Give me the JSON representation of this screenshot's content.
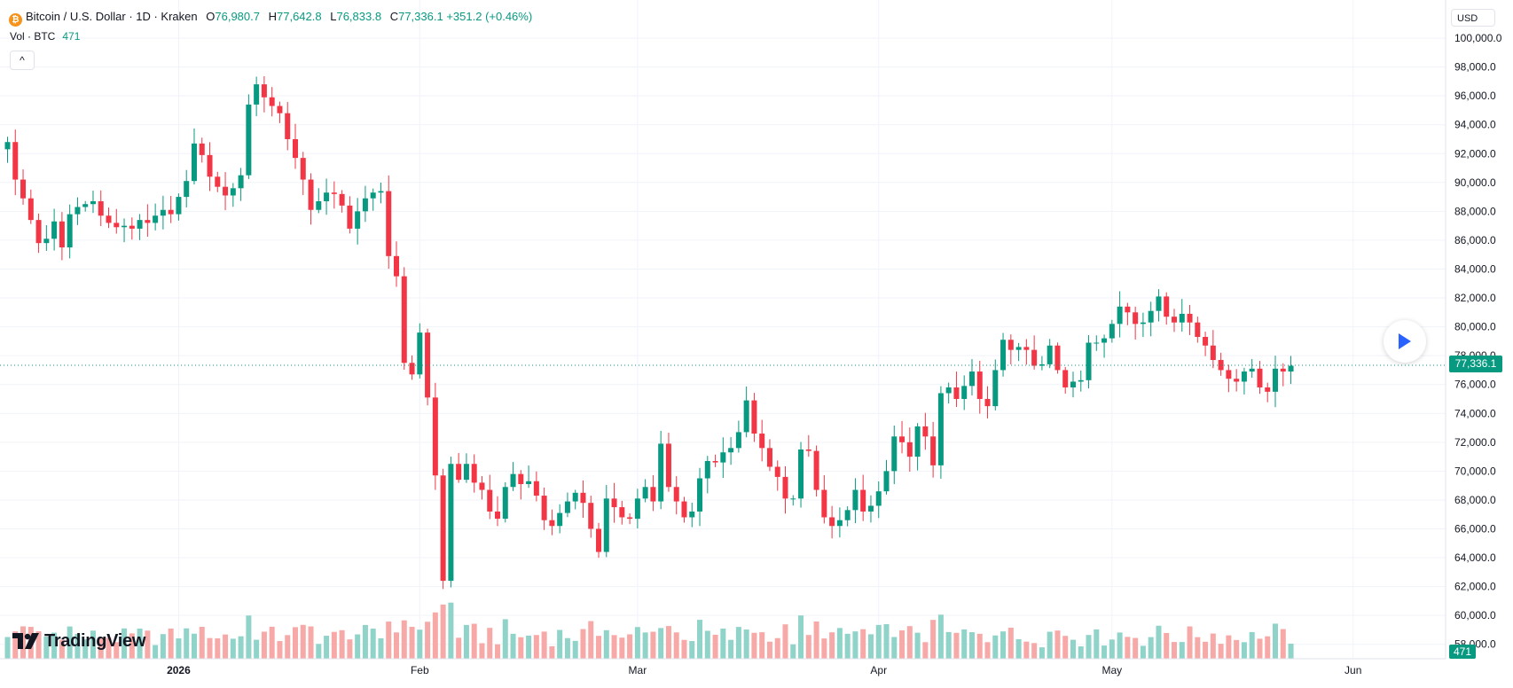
{
  "legend": {
    "coin_letter": "₿",
    "title": "Bitcoin / U.S. Dollar · 1D · Kraken",
    "open_label": "O",
    "open": "76,980.7",
    "high_label": "H",
    "high": "77,642.8",
    "low_label": "L",
    "low": "76,833.8",
    "close_label": "C",
    "close": "77,336.1",
    "change": "+351.2 (+0.46%)"
  },
  "volume_legend": {
    "label": "Vol · BTC",
    "value": "471"
  },
  "collapse_button": "^",
  "currency": "USD",
  "current_price_tag": "77,336.1",
  "current_volume_tag": "471",
  "logo_text": "TradingView",
  "colors": {
    "up": "#089981",
    "down": "#f23645",
    "up_vol": "#8fd3c9",
    "down_vol": "#f7a9a7",
    "grid": "#f0f3fa"
  },
  "chart_data": {
    "type": "candlestick",
    "xlabel": "",
    "ylabel": "",
    "ylim": [
      57000,
      100800
    ],
    "grid": true,
    "y_ticks": [
      58000,
      60000,
      62000,
      64000,
      66000,
      68000,
      70000,
      72000,
      74000,
      76000,
      78000,
      80000,
      82000,
      84000,
      86000,
      88000,
      90000,
      92000,
      94000,
      96000,
      98000,
      100000
    ],
    "y_tick_labels": [
      "58,000.0",
      "60,000.0",
      "62,000.0",
      "64,000.0",
      "66,000.0",
      "68,000.0",
      "70,000.0",
      "72,000.0",
      "74,000.0",
      "76,000.0",
      "78,000.0",
      "80,000.0",
      "82,000.0",
      "84,000.0",
      "86,000.0",
      "88,000.0",
      "90,000.0",
      "92,000.0",
      "94,000.0",
      "96,000.0",
      "98,000.0",
      "100,000.0"
    ],
    "x_ticks": [
      {
        "label": "2026",
        "index": 22,
        "bold": true
      },
      {
        "label": "Feb",
        "index": 53
      },
      {
        "label": "Mar",
        "index": 81
      },
      {
        "label": "Apr",
        "index": 112
      },
      {
        "label": "May",
        "index": 142
      },
      {
        "label": "Jun",
        "index": 173
      }
    ],
    "last_price": 77336.1,
    "closes": [
      92800,
      90200,
      88900,
      87400,
      85800,
      86100,
      87300,
      85500,
      87800,
      88300,
      88500,
      88700,
      87700,
      87200,
      86900,
      87000,
      86800,
      87400,
      87200,
      87700,
      88100,
      87800,
      89000,
      90100,
      92700,
      91900,
      90400,
      89700,
      89100,
      89600,
      90500,
      95400,
      96800,
      95900,
      95300,
      94800,
      93000,
      91700,
      90200,
      88100,
      88700,
      89300,
      89200,
      88400,
      86800,
      88000,
      88900,
      89300,
      89400,
      84900,
      83500,
      77500,
      76700,
      79600,
      75100,
      69700,
      62400,
      70500,
      69400,
      70500,
      69200,
      68700,
      67200,
      66700,
      68900,
      69800,
      69100,
      69300,
      68300,
      66600,
      66200,
      67100,
      67900,
      68500,
      67800,
      66000,
      64400,
      68100,
      67500,
      66800,
      66700,
      68100,
      68900,
      67900,
      71900,
      68900,
      67900,
      66800,
      67200,
      69500,
      70700,
      70600,
      71300,
      71600,
      72700,
      74900,
      72600,
      71600,
      70300,
      69600,
      68100,
      68100,
      71500,
      71400,
      68700,
      66800,
      66200,
      66600,
      67300,
      68700,
      67200,
      67600,
      68600,
      70000,
      72400,
      72000,
      71000,
      73100,
      72400,
      70400,
      75400,
      75800,
      75000,
      75900,
      76900,
      75000,
      74500,
      77000,
      79100,
      78400,
      78600,
      78400,
      77300,
      77400,
      78700,
      77000,
      75800,
      76200,
      76300,
      78900,
      78900,
      79200,
      80200,
      81400,
      81000,
      80200,
      80300,
      81100,
      82100,
      80700,
      80300,
      80900,
      80300,
      79300,
      78700,
      77700,
      77000,
      76400,
      76200,
      76900,
      77100,
      75800,
      75500,
      77100,
      76900,
      77300
    ]
  }
}
